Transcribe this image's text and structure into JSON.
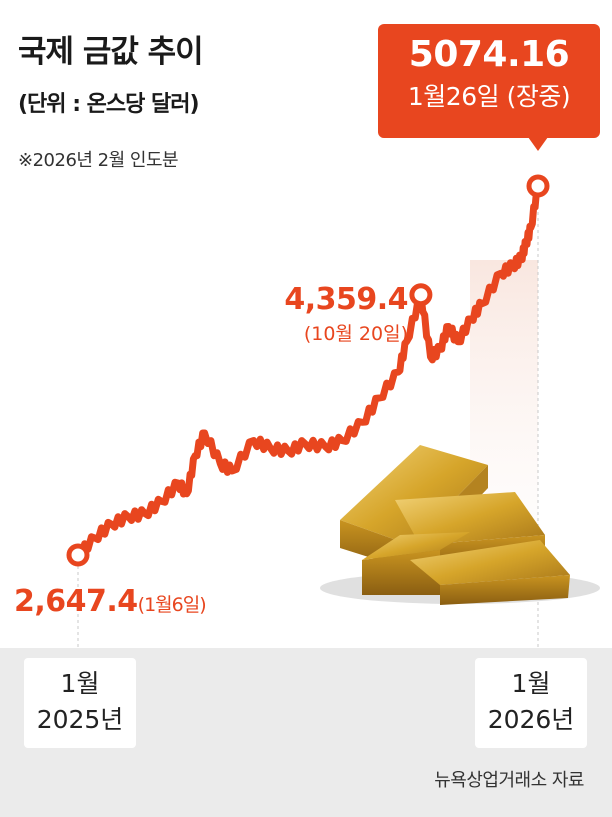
{
  "header": {
    "title": "국제 금값 추이",
    "unit": "(단위 : 온스당 달러)",
    "note": "※2026년 2월 인도분"
  },
  "annotations": {
    "start_value": "2,647.4",
    "start_date": "(1월6일)",
    "mid_value": "4,359.4",
    "mid_date": "(10월 20일)",
    "end_value": "5074.16",
    "end_date": "1월26일 (장중)"
  },
  "x_axis": {
    "start_month": "1월",
    "start_year": "2025년",
    "end_month": "1월",
    "end_year": "2026년"
  },
  "source": "뉴욕상업거래소 자료",
  "colors": {
    "accent": "#e8461f",
    "band": "#ebebeb",
    "gold": "#d6a52a"
  },
  "chart_data": {
    "type": "line",
    "title": "국제 금값 추이",
    "ylabel": "(단위 : 온스당 달러)",
    "ylim": [
      2400,
      5200
    ],
    "x": [
      "2025-01-06",
      "2025-01-20",
      "2025-02-03",
      "2025-02-17",
      "2025-03-03",
      "2025-03-17",
      "2025-03-31",
      "2025-04-07",
      "2025-04-14",
      "2025-04-22",
      "2025-05-05",
      "2025-05-15",
      "2025-06-02",
      "2025-06-16",
      "2025-07-01",
      "2025-07-15",
      "2025-08-01",
      "2025-08-15",
      "2025-09-01",
      "2025-09-15",
      "2025-10-01",
      "2025-10-08",
      "2025-10-20",
      "2025-10-28",
      "2025-11-05",
      "2025-11-12",
      "2025-11-20",
      "2025-12-01",
      "2025-12-10",
      "2025-12-26",
      "2026-01-05",
      "2026-01-12",
      "2026-01-16",
      "2026-01-20",
      "2026-01-26"
    ],
    "series": [
      {
        "values": [
          2647.4,
          2760,
          2850,
          2900,
          2920,
          3000,
          3120,
          3050,
          3300,
          3450,
          3250,
          3200,
          3400,
          3350,
          3330,
          3380,
          3360,
          3400,
          3520,
          3680,
          3850,
          4050,
          4359.4,
          3950,
          4000,
          4150,
          4050,
          4200,
          4300,
          4500,
          4550,
          4600,
          4700,
          4800,
          5074.16
        ]
      }
    ],
    "markers": [
      {
        "x": "2025-01-06",
        "y": 2647.4
      },
      {
        "x": "2025-10-20",
        "y": 4359.4
      },
      {
        "x": "2026-01-26",
        "y": 5074.16
      }
    ]
  }
}
